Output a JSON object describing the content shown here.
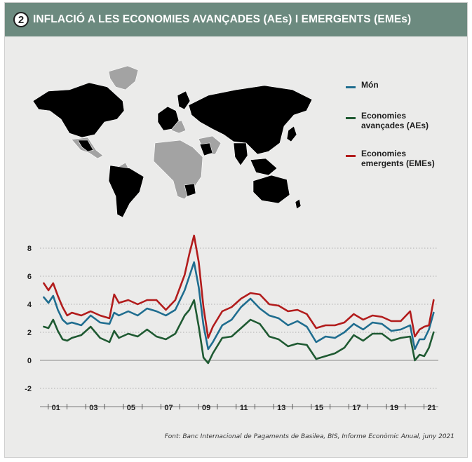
{
  "header": {
    "badge": "2",
    "title": "INFLACIÓ A LES ECONOMIES AVANÇADES (AEs) I EMERGENTS (EMEs)"
  },
  "legend": [
    {
      "label": "Món",
      "color": "#1f6d8f"
    },
    {
      "label": "Economies avançades (AEs)",
      "color": "#1f5a32"
    },
    {
      "label": "Economies emergents (EMEs)",
      "color": "#b21c1c"
    }
  ],
  "map": {
    "aes_color": "#1f5a32",
    "emes_color": "#b21c1c",
    "other_color": "#a3a3a3"
  },
  "source": "Font: Banc Internacional de Pagaments de Basilea, BIS, Informe Econòmic Anual, juny 2021",
  "chart_data": {
    "type": "line",
    "x": [
      2000.5,
      2000.75,
      2001.0,
      2001.25,
      2001.5,
      2001.75,
      2002.0,
      2002.5,
      2003.0,
      2003.5,
      2004.0,
      2004.25,
      2004.5,
      2005.0,
      2005.5,
      2006.0,
      2006.5,
      2007.0,
      2007.5,
      2008.0,
      2008.25,
      2008.5,
      2008.75,
      2009.0,
      2009.25,
      2009.5,
      2010.0,
      2010.5,
      2011.0,
      2011.5,
      2012.0,
      2012.5,
      2013.0,
      2013.5,
      2014.0,
      2014.5,
      2015.0,
      2015.5,
      2016.0,
      2016.5,
      2017.0,
      2017.5,
      2018.0,
      2018.5,
      2019.0,
      2019.5,
      2020.0,
      2020.25,
      2020.5,
      2020.75,
      2021.0,
      2021.25
    ],
    "series": [
      {
        "name": "Món",
        "color": "#1f6d8f",
        "values": [
          4.5,
          4.1,
          4.6,
          3.6,
          2.9,
          2.6,
          2.7,
          2.5,
          3.2,
          2.7,
          2.6,
          3.4,
          3.2,
          3.5,
          3.2,
          3.7,
          3.5,
          3.2,
          3.6,
          5.0,
          6.0,
          7.0,
          5.2,
          2.5,
          0.8,
          1.3,
          2.5,
          2.9,
          3.8,
          4.4,
          3.7,
          3.2,
          3.0,
          2.5,
          2.8,
          2.4,
          1.3,
          1.7,
          1.6,
          2.0,
          2.6,
          2.2,
          2.7,
          2.6,
          2.1,
          2.2,
          2.5,
          0.8,
          1.5,
          1.5,
          2.2,
          3.4
        ]
      },
      {
        "name": "Economies avançades (AEs)",
        "color": "#1f5a32",
        "values": [
          2.4,
          2.3,
          2.9,
          2.1,
          1.5,
          1.4,
          1.6,
          1.8,
          2.4,
          1.6,
          1.3,
          2.1,
          1.6,
          1.9,
          1.7,
          2.2,
          1.7,
          1.5,
          1.9,
          3.2,
          3.6,
          4.3,
          2.4,
          0.2,
          -0.2,
          0.5,
          1.6,
          1.7,
          2.3,
          2.9,
          2.6,
          1.7,
          1.5,
          1.0,
          1.2,
          1.1,
          0.1,
          0.3,
          0.5,
          0.9,
          1.8,
          1.4,
          1.9,
          1.9,
          1.4,
          1.6,
          1.7,
          0.0,
          0.4,
          0.3,
          0.9,
          2.0
        ]
      },
      {
        "name": "Economies emergents (EMEs)",
        "color": "#b21c1c",
        "values": [
          5.5,
          5.0,
          5.5,
          4.6,
          3.8,
          3.2,
          3.4,
          3.2,
          3.5,
          3.2,
          3.0,
          4.7,
          4.1,
          4.3,
          4.0,
          4.3,
          4.3,
          3.6,
          4.3,
          6.1,
          7.6,
          8.9,
          7.0,
          3.8,
          1.6,
          2.4,
          3.5,
          3.8,
          4.4,
          4.8,
          4.7,
          4.0,
          3.9,
          3.5,
          3.6,
          3.3,
          2.3,
          2.5,
          2.5,
          2.7,
          3.3,
          2.9,
          3.2,
          3.1,
          2.8,
          2.8,
          3.5,
          1.7,
          2.2,
          2.4,
          2.5,
          4.3
        ]
      }
    ],
    "xticks": [
      "01",
      "03",
      "05",
      "07",
      "09",
      "11",
      "13",
      "15",
      "17",
      "19",
      "21"
    ],
    "xtick_values": [
      2001,
      2003,
      2005,
      2007,
      2009,
      2011,
      2013,
      2015,
      2017,
      2019,
      2021
    ],
    "xlim": [
      2000.3,
      2021.5
    ],
    "yticks": [
      -2,
      0,
      2,
      4,
      6,
      8
    ],
    "ylim": [
      -3,
      9
    ],
    "grid": "horizontal dotted"
  }
}
